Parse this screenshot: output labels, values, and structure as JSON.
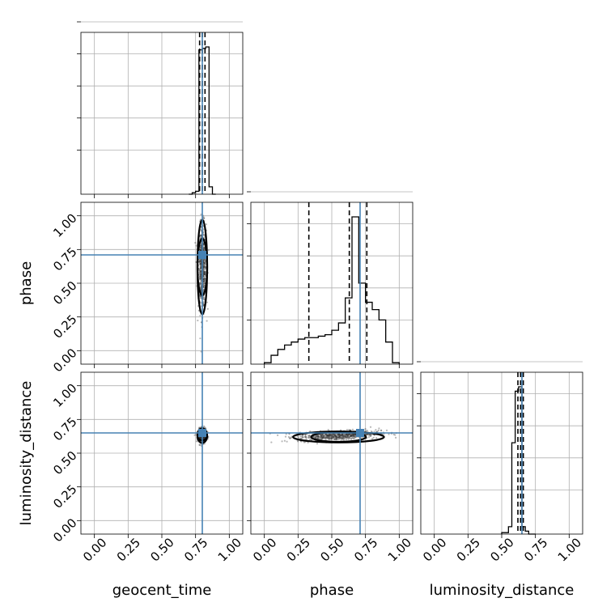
{
  "chart_data": {
    "type": "corner",
    "parameters": [
      "geocent_time",
      "phase",
      "luminosity_distance"
    ],
    "axis_range": [
      -0.1,
      1.1
    ],
    "ticks": [
      0.0,
      0.25,
      0.5,
      0.75,
      1.0
    ],
    "tick_labels": [
      "0.00",
      "0.25",
      "0.50",
      "0.75",
      "1.00"
    ],
    "truths": {
      "geocent_time": 0.8,
      "phase": 0.71,
      "luminosity_distance": 0.65
    },
    "truth_color": "#4682b4",
    "grid": true,
    "histograms": {
      "geocent_time": {
        "bin_edges": [
          0.7,
          0.725,
          0.75,
          0.775,
          0.8,
          0.825,
          0.85,
          0.875,
          0.9
        ],
        "counts": [
          0.0,
          0.01,
          0.02,
          0.98,
          0.99,
          1.0,
          0.05,
          0.0
        ],
        "quantiles": [
          0.78,
          0.8,
          0.82
        ]
      },
      "phase": {
        "bin_edges": [
          0.0,
          0.05,
          0.1,
          0.15,
          0.2,
          0.25,
          0.3,
          0.35,
          0.4,
          0.45,
          0.5,
          0.55,
          0.6,
          0.65,
          0.7,
          0.75,
          0.8,
          0.85,
          0.9,
          0.95,
          1.0
        ],
        "counts": [
          0.01,
          0.06,
          0.1,
          0.13,
          0.15,
          0.17,
          0.18,
          0.18,
          0.19,
          0.2,
          0.23,
          0.28,
          0.45,
          1.0,
          0.55,
          0.42,
          0.37,
          0.3,
          0.15,
          0.01
        ],
        "quantiles": [
          0.33,
          0.63,
          0.76
        ]
      },
      "luminosity_distance": {
        "bin_edges": [
          0.5,
          0.55,
          0.575,
          0.6,
          0.625,
          0.65,
          0.675,
          0.7,
          0.75
        ],
        "counts": [
          0.01,
          0.05,
          0.62,
          0.97,
          1.0,
          0.05,
          0.02,
          0.0
        ],
        "quantiles": [
          0.62,
          0.64,
          0.66
        ]
      }
    },
    "scatter_2d": [
      {
        "x": "geocent_time",
        "y": "phase",
        "center": [
          0.8,
          0.62
        ],
        "spread": [
          0.025,
          0.26
        ]
      },
      {
        "x": "geocent_time",
        "y": "luminosity_distance",
        "center": [
          0.8,
          0.63
        ],
        "spread": [
          0.025,
          0.04
        ]
      },
      {
        "x": "phase",
        "y": "luminosity_distance",
        "center": [
          0.55,
          0.62
        ],
        "spread": [
          0.25,
          0.03
        ]
      }
    ]
  }
}
